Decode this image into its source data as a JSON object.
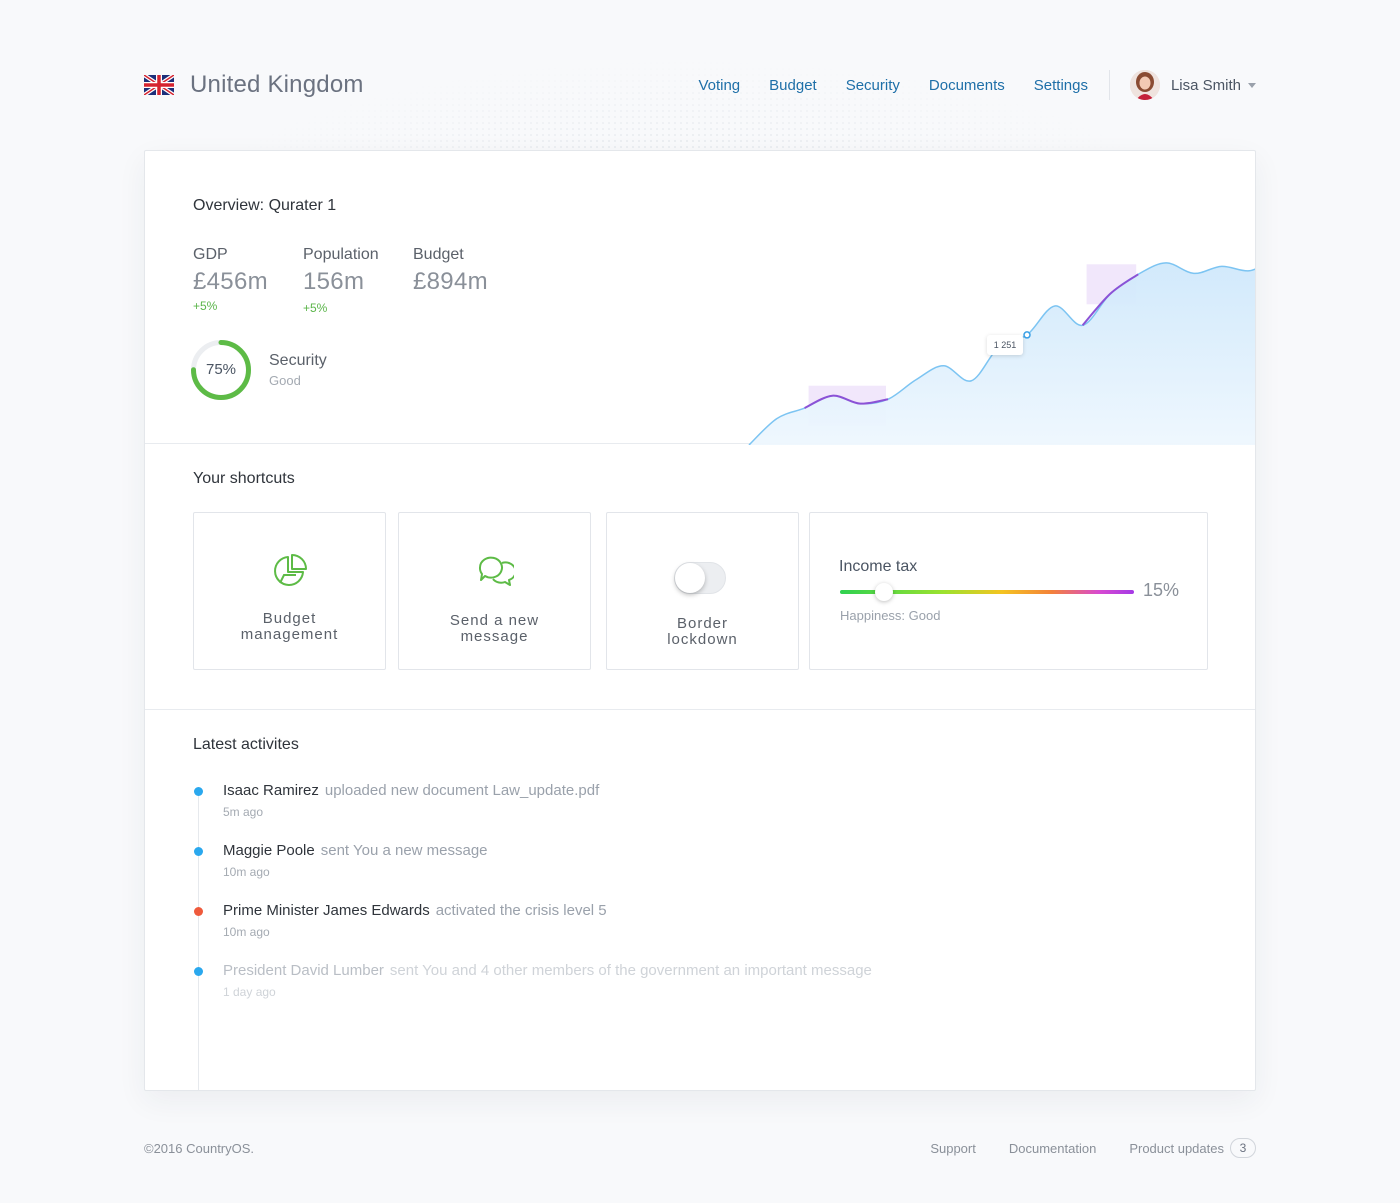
{
  "header": {
    "country": "United Kingdom",
    "nav": [
      "Voting",
      "Budget",
      "Security",
      "Documents",
      "Settings"
    ],
    "user": {
      "name": "Lisa Smith"
    }
  },
  "overview": {
    "title": "Overview: Qurater 1",
    "stats": [
      {
        "label": "GDP",
        "value": "£456m",
        "change": "+5%"
      },
      {
        "label": "Population",
        "value": "156m",
        "change": "+5%"
      },
      {
        "label": "Budget",
        "value": "£894m",
        "change": ""
      }
    ],
    "security": {
      "percent": 75,
      "percent_label": "75%",
      "label": "Security",
      "status": "Good"
    }
  },
  "chart_data": {
    "type": "area",
    "x": [
      0,
      1,
      2,
      3,
      4,
      5,
      6,
      7,
      8,
      9,
      10,
      11,
      12,
      13,
      14,
      15,
      16,
      17,
      18,
      19,
      20
    ],
    "values": [
      0,
      300,
      420,
      560,
      470,
      520,
      740,
      900,
      730,
      1120,
      1251,
      1580,
      1360,
      1720,
      1940,
      2070,
      1950,
      2030,
      1980,
      2090,
      1870
    ],
    "tooltip_label": "1 251",
    "tooltip_index": 10,
    "highlight_ranges": [
      [
        2,
        5
      ],
      [
        12,
        14
      ]
    ],
    "fill_color": "#dbeefc",
    "line_color": "#7cc4f2",
    "highlight_color": "#8b52d6"
  },
  "shortcuts": {
    "title": "Your shortcuts",
    "budget": {
      "line1": "Budget",
      "line2": "management"
    },
    "message": {
      "line1": "Send a new",
      "line2": "message"
    },
    "border": {
      "line1": "Border",
      "line2": "lockdown",
      "enabled": false
    },
    "income_tax": {
      "label": "Income tax",
      "value": 15,
      "value_label": "15%",
      "happiness": "Happiness: Good"
    }
  },
  "activities": {
    "title": "Latest activites",
    "items": [
      {
        "actor": "Isaac Ramirez",
        "action": "uploaded new document Law_update.pdf",
        "time": "5m ago",
        "color": "#2aa8ee"
      },
      {
        "actor": "Maggie Poole",
        "action": "sent You a new message",
        "time": "10m ago",
        "color": "#2aa8ee"
      },
      {
        "actor": "Prime Minister James Edwards",
        "action": "activated the crisis level 5",
        "time": "10m ago",
        "color": "#ef5a3c"
      },
      {
        "actor": "President David Lumber",
        "action": "sent You and 4 other members of the government an important message",
        "time": "1 day ago",
        "color": "#2aa8ee"
      }
    ]
  },
  "footer": {
    "copyright": "©2016 CountryOS.",
    "links": [
      "Support",
      "Documentation",
      "Product updates"
    ],
    "updates_count": "3"
  }
}
